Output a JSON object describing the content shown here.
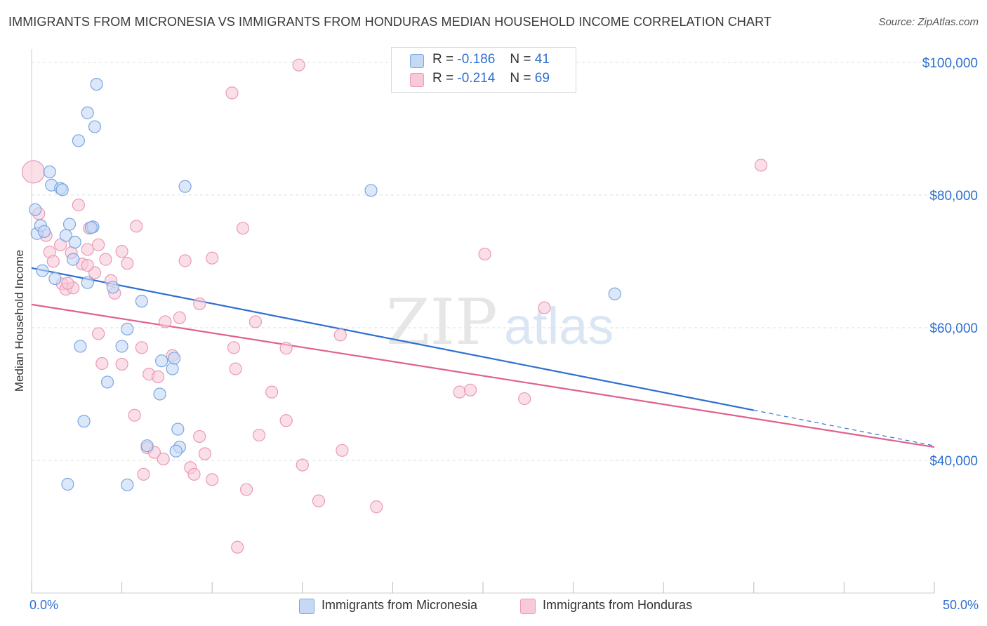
{
  "header": {
    "title": "IMMIGRANTS FROM MICRONESIA VS IMMIGRANTS FROM HONDURAS MEDIAN HOUSEHOLD INCOME CORRELATION CHART",
    "source": "Source: ZipAtlas.com"
  },
  "watermark": {
    "zip": "ZIP",
    "atlas": "atlas"
  },
  "legend": {
    "r_label": "R =",
    "n_label": "N =",
    "rows": [
      {
        "r": "-0.186",
        "n": "41"
      },
      {
        "r": "-0.214",
        "n": "69"
      }
    ]
  },
  "bottom_legend": {
    "micronesia": "Immigrants from Micronesia",
    "honduras": "Immigrants from Honduras"
  },
  "colors": {
    "micronesia_fill": "#c5d9f5",
    "micronesia_stroke": "#7aa6e0",
    "micronesia_line": "#2e6fd1",
    "honduras_fill": "#f9c9d8",
    "honduras_stroke": "#e99ab5",
    "honduras_line": "#e0608e",
    "axis_text": "#2e6fd1",
    "grid": "#dcdcdc"
  },
  "chart_data": {
    "type": "scatter",
    "title": "IMMIGRANTS FROM MICRONESIA VS IMMIGRANTS FROM HONDURAS MEDIAN HOUSEHOLD INCOME CORRELATION CHART",
    "xlabel": "",
    "ylabel": "Median Household Income",
    "xlim": [
      0,
      50
    ],
    "ylim": [
      20000,
      102000
    ],
    "x_tick_labels": [
      "0.0%",
      "50.0%"
    ],
    "y_ticks": [
      40000,
      60000,
      80000,
      100000
    ],
    "y_tick_labels": [
      "$40,000",
      "$60,000",
      "$80,000",
      "$100,000"
    ],
    "grid": true,
    "legend_position": "top-center",
    "series": [
      {
        "name": "Immigrants from Micronesia",
        "r": -0.186,
        "n": 41,
        "trend": {
          "x_start": 0,
          "y_start": 69000,
          "x_solid_end": 40,
          "x_end": 50,
          "y_end": 42200
        },
        "points": [
          [
            0.2,
            77800
          ],
          [
            0.3,
            74200
          ],
          [
            0.5,
            75400
          ],
          [
            0.7,
            74500
          ],
          [
            0.6,
            68600
          ],
          [
            1.0,
            83500
          ],
          [
            1.1,
            81500
          ],
          [
            1.6,
            81000
          ],
          [
            1.7,
            80800
          ],
          [
            1.9,
            73900
          ],
          [
            2.1,
            75600
          ],
          [
            2.3,
            70300
          ],
          [
            1.3,
            67400
          ],
          [
            2.4,
            72900
          ],
          [
            2.6,
            88200
          ],
          [
            3.1,
            92400
          ],
          [
            3.5,
            90300
          ],
          [
            3.6,
            96700
          ],
          [
            3.4,
            75200
          ],
          [
            3.3,
            75100
          ],
          [
            3.1,
            66800
          ],
          [
            4.5,
            66100
          ],
          [
            5.0,
            57200
          ],
          [
            5.3,
            59800
          ],
          [
            6.1,
            64000
          ],
          [
            7.2,
            55000
          ],
          [
            7.8,
            53800
          ],
          [
            7.9,
            55400
          ],
          [
            2.7,
            57200
          ],
          [
            4.2,
            51800
          ],
          [
            7.1,
            50000
          ],
          [
            2.9,
            45900
          ],
          [
            8.1,
            44700
          ],
          [
            6.4,
            42200
          ],
          [
            8.2,
            42000
          ],
          [
            8.0,
            41400
          ],
          [
            2.0,
            36400
          ],
          [
            5.3,
            36300
          ],
          [
            8.5,
            81300
          ],
          [
            18.8,
            80700
          ],
          [
            32.3,
            65100
          ]
        ]
      },
      {
        "name": "Immigrants from Honduras",
        "r": -0.214,
        "n": 69,
        "trend": {
          "x_start": 0,
          "y_start": 63500,
          "x_end": 50,
          "y_end": 42000
        },
        "points": [
          [
            0.1,
            83500
          ],
          [
            0.4,
            77200
          ],
          [
            0.8,
            73900
          ],
          [
            1.0,
            71400
          ],
          [
            1.2,
            70000
          ],
          [
            1.6,
            72500
          ],
          [
            1.7,
            66600
          ],
          [
            1.9,
            65800
          ],
          [
            2.2,
            71300
          ],
          [
            2.3,
            66000
          ],
          [
            2.8,
            69600
          ],
          [
            2.6,
            78500
          ],
          [
            3.1,
            71800
          ],
          [
            3.2,
            75000
          ],
          [
            3.5,
            68300
          ],
          [
            3.7,
            72500
          ],
          [
            4.1,
            70300
          ],
          [
            4.4,
            67100
          ],
          [
            4.6,
            65200
          ],
          [
            5.0,
            71500
          ],
          [
            5.3,
            69700
          ],
          [
            5.8,
            75300
          ],
          [
            6.1,
            57000
          ],
          [
            6.5,
            53000
          ],
          [
            7.0,
            52600
          ],
          [
            7.4,
            60900
          ],
          [
            7.8,
            55800
          ],
          [
            8.2,
            61500
          ],
          [
            8.5,
            70100
          ],
          [
            9.3,
            63600
          ],
          [
            10.0,
            70500
          ],
          [
            11.1,
            95400
          ],
          [
            11.2,
            57000
          ],
          [
            11.3,
            53800
          ],
          [
            11.7,
            75000
          ],
          [
            12.4,
            60900
          ],
          [
            13.3,
            50300
          ],
          [
            14.1,
            56900
          ],
          [
            14.8,
            99600
          ],
          [
            14.1,
            46000
          ],
          [
            15.0,
            39300
          ],
          [
            15.9,
            33900
          ],
          [
            17.1,
            58900
          ],
          [
            17.2,
            41500
          ],
          [
            19.1,
            33000
          ],
          [
            23.7,
            50300
          ],
          [
            24.3,
            50600
          ],
          [
            25.1,
            71100
          ],
          [
            27.3,
            49300
          ],
          [
            28.4,
            63000
          ],
          [
            40.4,
            84500
          ],
          [
            3.7,
            59100
          ],
          [
            3.9,
            54600
          ],
          [
            5.0,
            54500
          ],
          [
            5.7,
            46800
          ],
          [
            6.2,
            37900
          ],
          [
            6.4,
            41900
          ],
          [
            6.8,
            41200
          ],
          [
            7.3,
            40200
          ],
          [
            8.8,
            38900
          ],
          [
            9.0,
            37900
          ],
          [
            9.3,
            43600
          ],
          [
            9.6,
            41000
          ],
          [
            10.0,
            37100
          ],
          [
            11.4,
            26900
          ],
          [
            11.9,
            35600
          ],
          [
            12.6,
            43800
          ],
          [
            3.1,
            69400
          ],
          [
            2.0,
            66700
          ]
        ]
      }
    ]
  }
}
